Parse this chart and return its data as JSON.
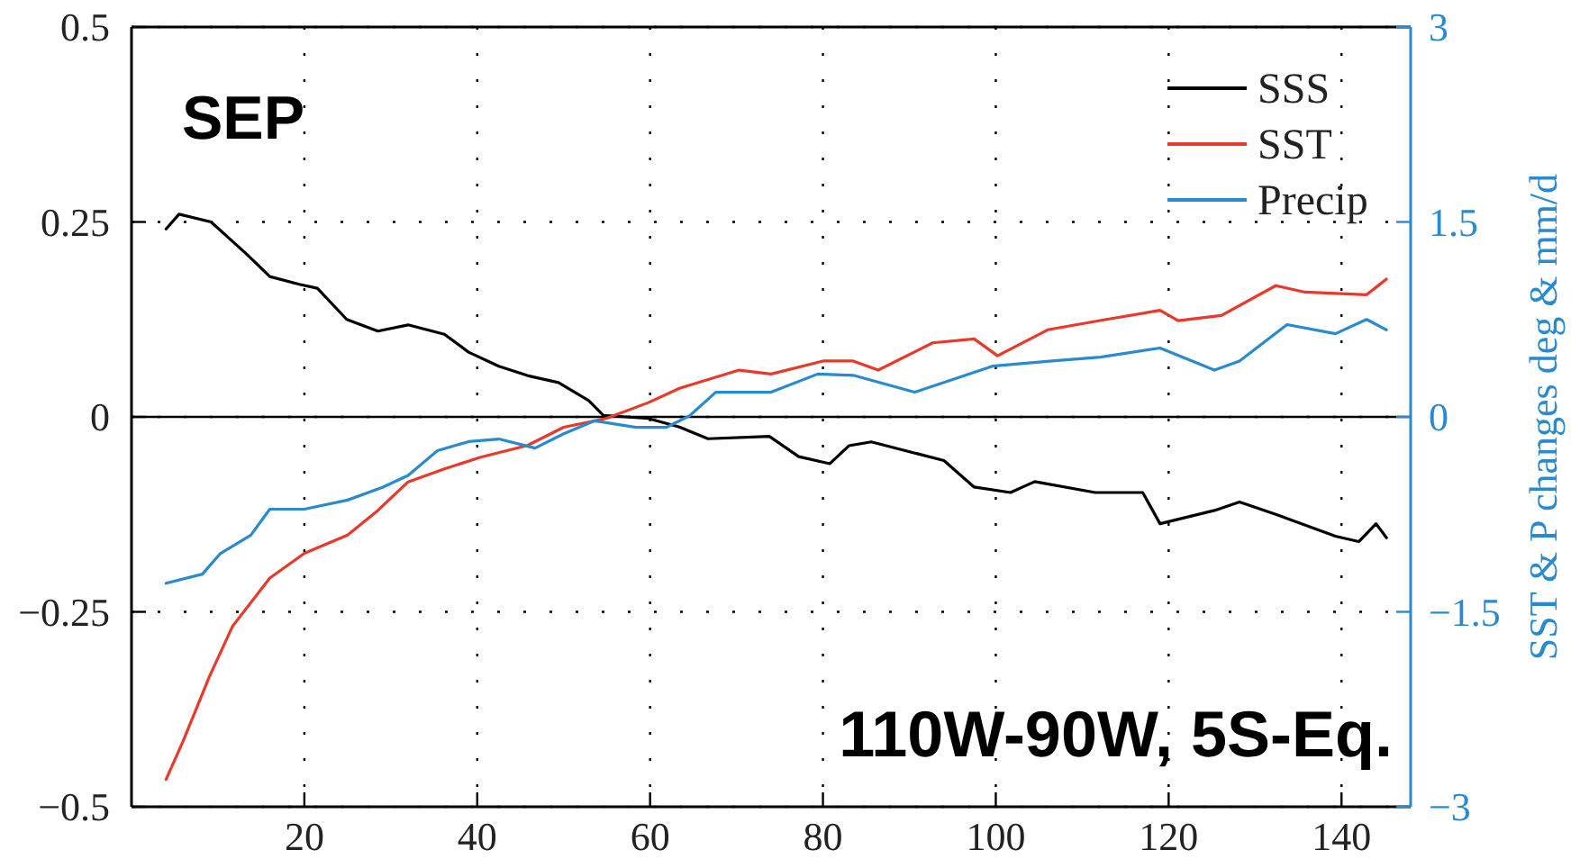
{
  "chart_data": {
    "type": "line",
    "y2label": "SST & P changes deg & mm/d",
    "annotations": [
      "SEP",
      "110W-90W, 5S-Eq."
    ],
    "xlim": [
      0,
      148
    ],
    "xticks": [
      20,
      40,
      60,
      80,
      100,
      120,
      140
    ],
    "ylim": [
      -0.5,
      0.5
    ],
    "yticks": [
      -0.5,
      -0.25,
      0,
      0.25,
      0.5
    ],
    "y2lim": [
      -3,
      3
    ],
    "y2ticks": [
      -3,
      -1.5,
      0,
      1.5,
      3
    ],
    "grid": true,
    "legend": "top right",
    "line_style": "solid",
    "ref_lines": [
      {
        "axis": "y",
        "value": 0,
        "color": "#000000"
      }
    ],
    "series": [
      {
        "name": "SSS",
        "color": "#000000",
        "x": [
          4,
          5.5,
          9.2,
          13.2,
          16,
          19.4,
          21.5,
          24.9,
          28.5,
          32,
          36.2,
          39,
          42.5,
          45.8,
          49.4,
          52.9,
          54.6,
          59.8,
          63.4,
          66.7,
          73.8,
          77.2,
          80.8,
          83,
          85.6,
          94,
          97.5,
          101.7,
          104.5,
          111.5,
          117,
          119,
          125.3,
          128.2,
          132.4,
          139.3,
          142,
          144,
          145.2
        ],
        "values": [
          0.241,
          0.26,
          0.25,
          0.21,
          0.18,
          0.17,
          0.165,
          0.125,
          0.11,
          0.118,
          0.106,
          0.083,
          0.065,
          0.053,
          0.044,
          0.021,
          0.002,
          -0.002,
          -0.013,
          -0.028,
          -0.025,
          -0.051,
          -0.06,
          -0.037,
          -0.032,
          -0.056,
          -0.09,
          -0.097,
          -0.083,
          -0.097,
          -0.097,
          -0.137,
          -0.12,
          -0.109,
          -0.125,
          -0.153,
          -0.16,
          -0.137,
          -0.155
        ]
      },
      {
        "name": "SST",
        "color": "#e8392a",
        "axis": "y2",
        "x": [
          4,
          6,
          9,
          11.7,
          16,
          20,
          25,
          28.5,
          32,
          36.2,
          40.4,
          45.8,
          50,
          55,
          59.8,
          63.4,
          70.3,
          74,
          80,
          83.5,
          86.4,
          92.7,
          97.5,
          100.2,
          106,
          112.8,
          119,
          121.1,
          126.1,
          132.4,
          135.8,
          142.9,
          145.2
        ],
        "values": [
          -2.79,
          -2.49,
          -2.0,
          -1.61,
          -1.24,
          -1.05,
          -0.91,
          -0.72,
          -0.5,
          -0.4,
          -0.31,
          -0.22,
          -0.08,
          -0.01,
          0.11,
          0.22,
          0.36,
          0.33,
          0.43,
          0.43,
          0.36,
          0.57,
          0.6,
          0.47,
          0.67,
          0.75,
          0.82,
          0.74,
          0.78,
          1.01,
          0.96,
          0.94,
          1.06
        ]
      },
      {
        "name": "Precip",
        "color": "#2a8ad0",
        "axis": "y2",
        "x": [
          4,
          8.2,
          10.3,
          13.8,
          16,
          20,
          25,
          29.1,
          32,
          35.4,
          39,
          42.5,
          46.7,
          50,
          53.6,
          58.4,
          61.9,
          64.6,
          67.6,
          74,
          79.4,
          83.5,
          90.6,
          99.6,
          106.5,
          112.1,
          119,
          125.3,
          128.2,
          133.7,
          139.3,
          142.9,
          145.2
        ],
        "values": [
          -1.28,
          -1.21,
          -1.05,
          -0.91,
          -0.71,
          -0.71,
          -0.64,
          -0.54,
          -0.45,
          -0.26,
          -0.19,
          -0.17,
          -0.24,
          -0.13,
          -0.03,
          -0.08,
          -0.08,
          0.01,
          0.19,
          0.19,
          0.33,
          0.32,
          0.19,
          0.39,
          0.43,
          0.46,
          0.53,
          0.36,
          0.43,
          0.71,
          0.64,
          0.75,
          0.67
        ]
      }
    ]
  }
}
